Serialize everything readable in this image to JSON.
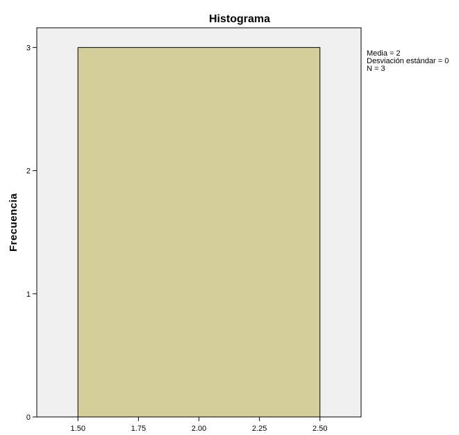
{
  "chart_data": {
    "type": "bar",
    "title": "Histograma",
    "xlabel": "",
    "ylabel": "Frecuencia",
    "bins": [
      {
        "start": 1.5,
        "end": 2.5,
        "count": 3
      }
    ],
    "xlim": [
      1.33,
      2.67
    ],
    "ylim": [
      0,
      3.16
    ],
    "x_ticks": [
      "1.50",
      "1.75",
      "2.00",
      "2.25",
      "2.50"
    ],
    "x_tick_values": [
      1.5,
      1.75,
      2.0,
      2.25,
      2.5
    ],
    "y_ticks": [
      "0",
      "1",
      "2",
      "3"
    ],
    "y_tick_values": [
      0,
      1,
      2,
      3
    ],
    "grid": false,
    "legend": "none",
    "stats": [
      "Media = 2",
      "Desviación estándar = 0",
      "N = 3"
    ],
    "colors": {
      "plot_background": "#f0f0f0",
      "bar_fill": "#d3ce9a",
      "bar_stroke": "#000000",
      "axis": "#000000",
      "frame": "#000000"
    }
  }
}
